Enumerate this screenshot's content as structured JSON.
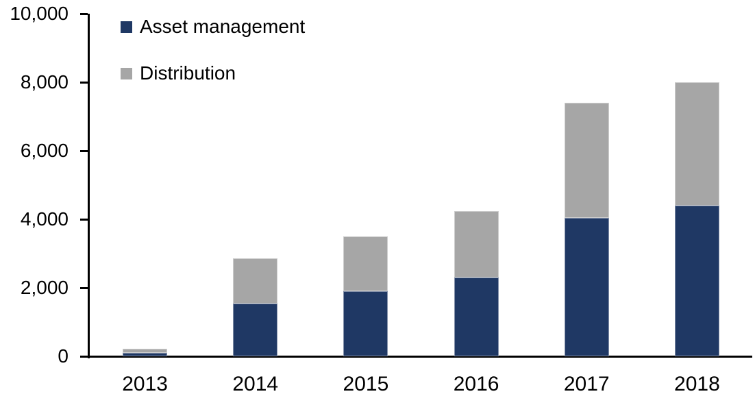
{
  "chart_data": {
    "type": "bar",
    "stacked": true,
    "title": "",
    "xlabel": "",
    "ylabel": "",
    "categories": [
      "2013",
      "2014",
      "2015",
      "2016",
      "2017",
      "2018"
    ],
    "series": [
      {
        "name": "Asset management",
        "color": "#1f3864",
        "values": [
          100,
          1550,
          1900,
          2300,
          4050,
          4400
        ]
      },
      {
        "name": "Distribution",
        "color": "#a6a6a6",
        "values": [
          120,
          1320,
          1600,
          1950,
          3350,
          3600
        ]
      }
    ],
    "ylim": [
      0,
      10000
    ],
    "ytick_interval": 2000,
    "ytick_labels": [
      "0",
      "2,000",
      "4,000",
      "6,000",
      "8,000",
      "10,000"
    ],
    "grid": false,
    "legend_position": "top-left",
    "axis_color": "#000000",
    "background_color": "#ffffff"
  }
}
